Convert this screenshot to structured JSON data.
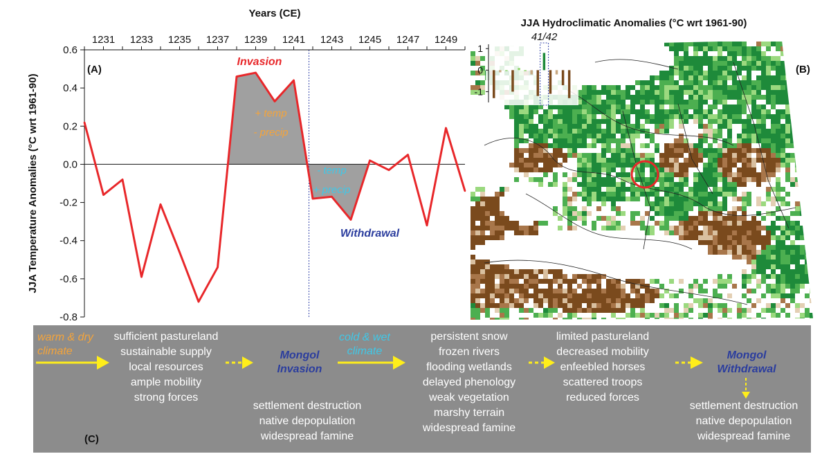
{
  "chart_data": [
    {
      "type": "line",
      "panel": "(A)",
      "title": "Years (CE)",
      "ylabel": "JJA Temperature Anomalies (°C wrt 1961-90)",
      "x": [
        1230,
        1231,
        1232,
        1233,
        1234,
        1235,
        1236,
        1237,
        1238,
        1239,
        1240,
        1241,
        1242,
        1243,
        1244,
        1245,
        1246,
        1247,
        1248,
        1249,
        1250
      ],
      "series": [
        {
          "values": [
            0.22,
            -0.16,
            -0.08,
            -0.59,
            -0.21,
            -0.46,
            -0.72,
            -0.54,
            0.46,
            0.48,
            0.33,
            0.44,
            -0.18,
            -0.17,
            -0.29,
            0.02,
            -0.03,
            0.05,
            -0.32,
            0.19,
            -0.14
          ],
          "color": "#e8272a"
        }
      ],
      "xticks": [
        "1231",
        "1233",
        "1235",
        "1237",
        "1239",
        "1241",
        "1243",
        "1245",
        "1247",
        "1249"
      ],
      "yticks": [
        "0.6",
        "0.4",
        "0.2",
        "0.0",
        "-0.2",
        "-0.4",
        "-0.6",
        "-0.8"
      ],
      "xlim": [
        1230,
        1250
      ],
      "ylim": [
        -0.8,
        0.6
      ],
      "vline_x": 1241.8,
      "shaded_ranges": [
        [
          1238,
          1241.8
        ],
        [
          1241.8,
          1244
        ]
      ],
      "annotations": {
        "invasion": "Invasion",
        "withdrawal": "Withdrawal",
        "warm_line1": "+ temp",
        "warm_line2": "- precip",
        "cold_line1": "- temp",
        "cold_line2": "+ precip"
      },
      "colors": {
        "line": "#e8272a",
        "fill": "#a0a0a0",
        "vline": "#3344aa",
        "warm": "#f5a43a",
        "cold": "#3fc8e8"
      }
    },
    {
      "type": "bar",
      "panel": "(B)",
      "title": "JJA Hydroclimatic Anomalies (°C wrt 1961-90)",
      "inset_label": "41/42",
      "values": [
        -1.3,
        -0.1,
        0.0,
        -1.0,
        0.1,
        0.0,
        -0.2,
        -1.2,
        0.8,
        -1.1,
        -0.2,
        -0.7,
        -1.3
      ],
      "yticks": [
        "1",
        "0",
        "-1"
      ],
      "ylim": [
        -1.5,
        1.2
      ],
      "highlight_index": 8,
      "colors": {
        "dry": "#7a4a1d",
        "wet": "#1e8a3a",
        "light": "#c8a882",
        "lightwet": "#8fd46e"
      }
    }
  ],
  "flow": {
    "panel": "(C)",
    "warm_climate": [
      "warm & dry",
      "climate"
    ],
    "cold_climate": [
      "cold & wet",
      "climate"
    ],
    "invasion_conditions": [
      "sufficient pastureland",
      "sustainable supply",
      "local resources",
      "ample mobility",
      "strong forces"
    ],
    "mongol_invasion": [
      "Mongol",
      "Invasion"
    ],
    "invasion_impacts": [
      "settlement destruction",
      "native depopulation",
      "widespread famine"
    ],
    "cold_conditions": [
      "persistent snow",
      "frozen rivers",
      "flooding wetlands",
      "delayed phenology",
      "weak vegetation",
      "marshy terrain",
      "widespread famine"
    ],
    "withdrawal_conditions": [
      "limited pastureland",
      "decreased mobility",
      "enfeebled horses",
      "scattered troops",
      "reduced forces"
    ],
    "mongol_withdrawal": [
      "Mongol",
      "Withdrawal"
    ],
    "withdrawal_impacts": [
      "settlement destruction",
      "native depopulation",
      "widespread famine"
    ],
    "colors": {
      "box": "#8c8c8c",
      "arrow": "#ffee1a",
      "warm": "#f5a43a",
      "cold": "#3fc8e8",
      "mongol": "#2b3d9e"
    }
  }
}
